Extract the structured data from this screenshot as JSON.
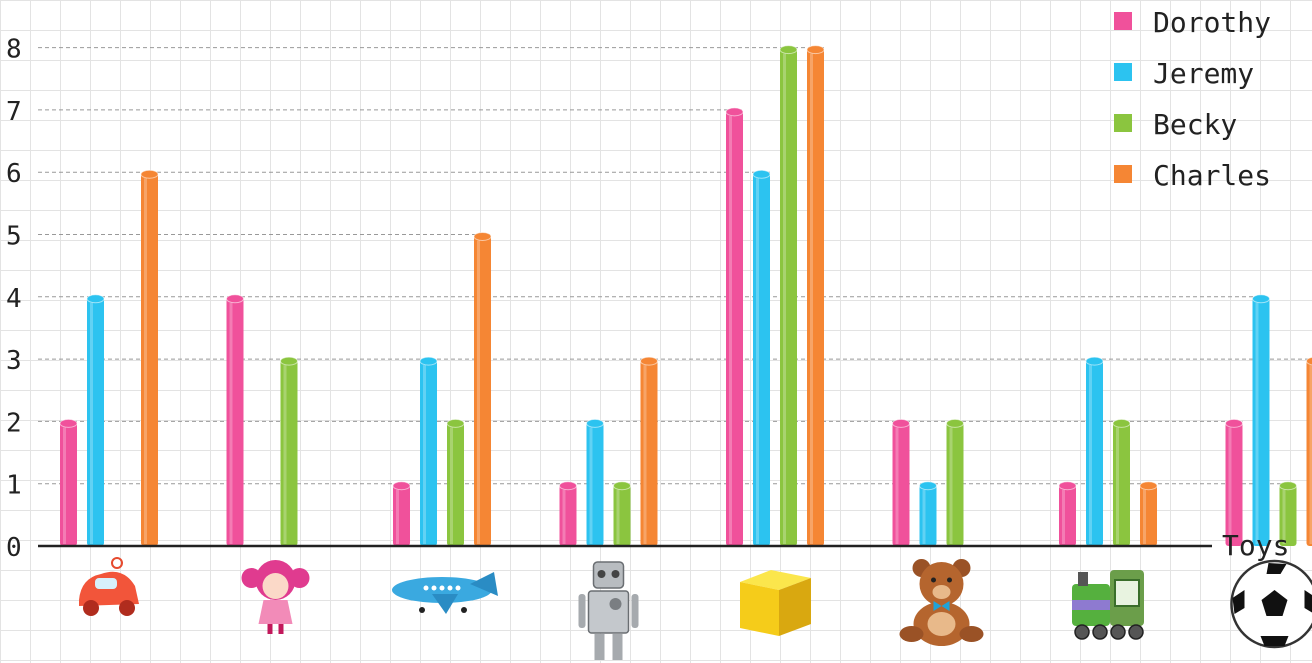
{
  "chart_data": {
    "type": "bar",
    "categories": [
      "car",
      "doll",
      "airplane",
      "robot",
      "block",
      "teddy bear",
      "train",
      "soccer ball"
    ],
    "series": [
      {
        "name": "Dorothy",
        "values": [
          2,
          4,
          1,
          1,
          7,
          2,
          1,
          2
        ],
        "color": "#f0519b"
      },
      {
        "name": "Jeremy",
        "values": [
          4,
          0,
          3,
          2,
          6,
          1,
          3,
          4
        ],
        "color": "#2cc3f0"
      },
      {
        "name": "Becky",
        "values": [
          0,
          3,
          2,
          1,
          8,
          2,
          2,
          1
        ],
        "color": "#8bc53f"
      },
      {
        "name": "Charles",
        "values": [
          6,
          0,
          5,
          3,
          8,
          0,
          1,
          3
        ],
        "color": "#f58634"
      }
    ],
    "category_icons": [
      "toy-car-icon",
      "doll-icon",
      "airplane-icon",
      "robot-icon",
      "block-icon",
      "teddy-bear-icon",
      "train-icon",
      "soccer-ball-icon"
    ],
    "xlabel": "Toys",
    "ylabel": "",
    "ylim": [
      0,
      8
    ],
    "yticks": [
      "0",
      "1",
      "2",
      "3",
      "4",
      "5",
      "6",
      "7",
      "8"
    ],
    "legend_position": "top-right",
    "grid": true
  }
}
